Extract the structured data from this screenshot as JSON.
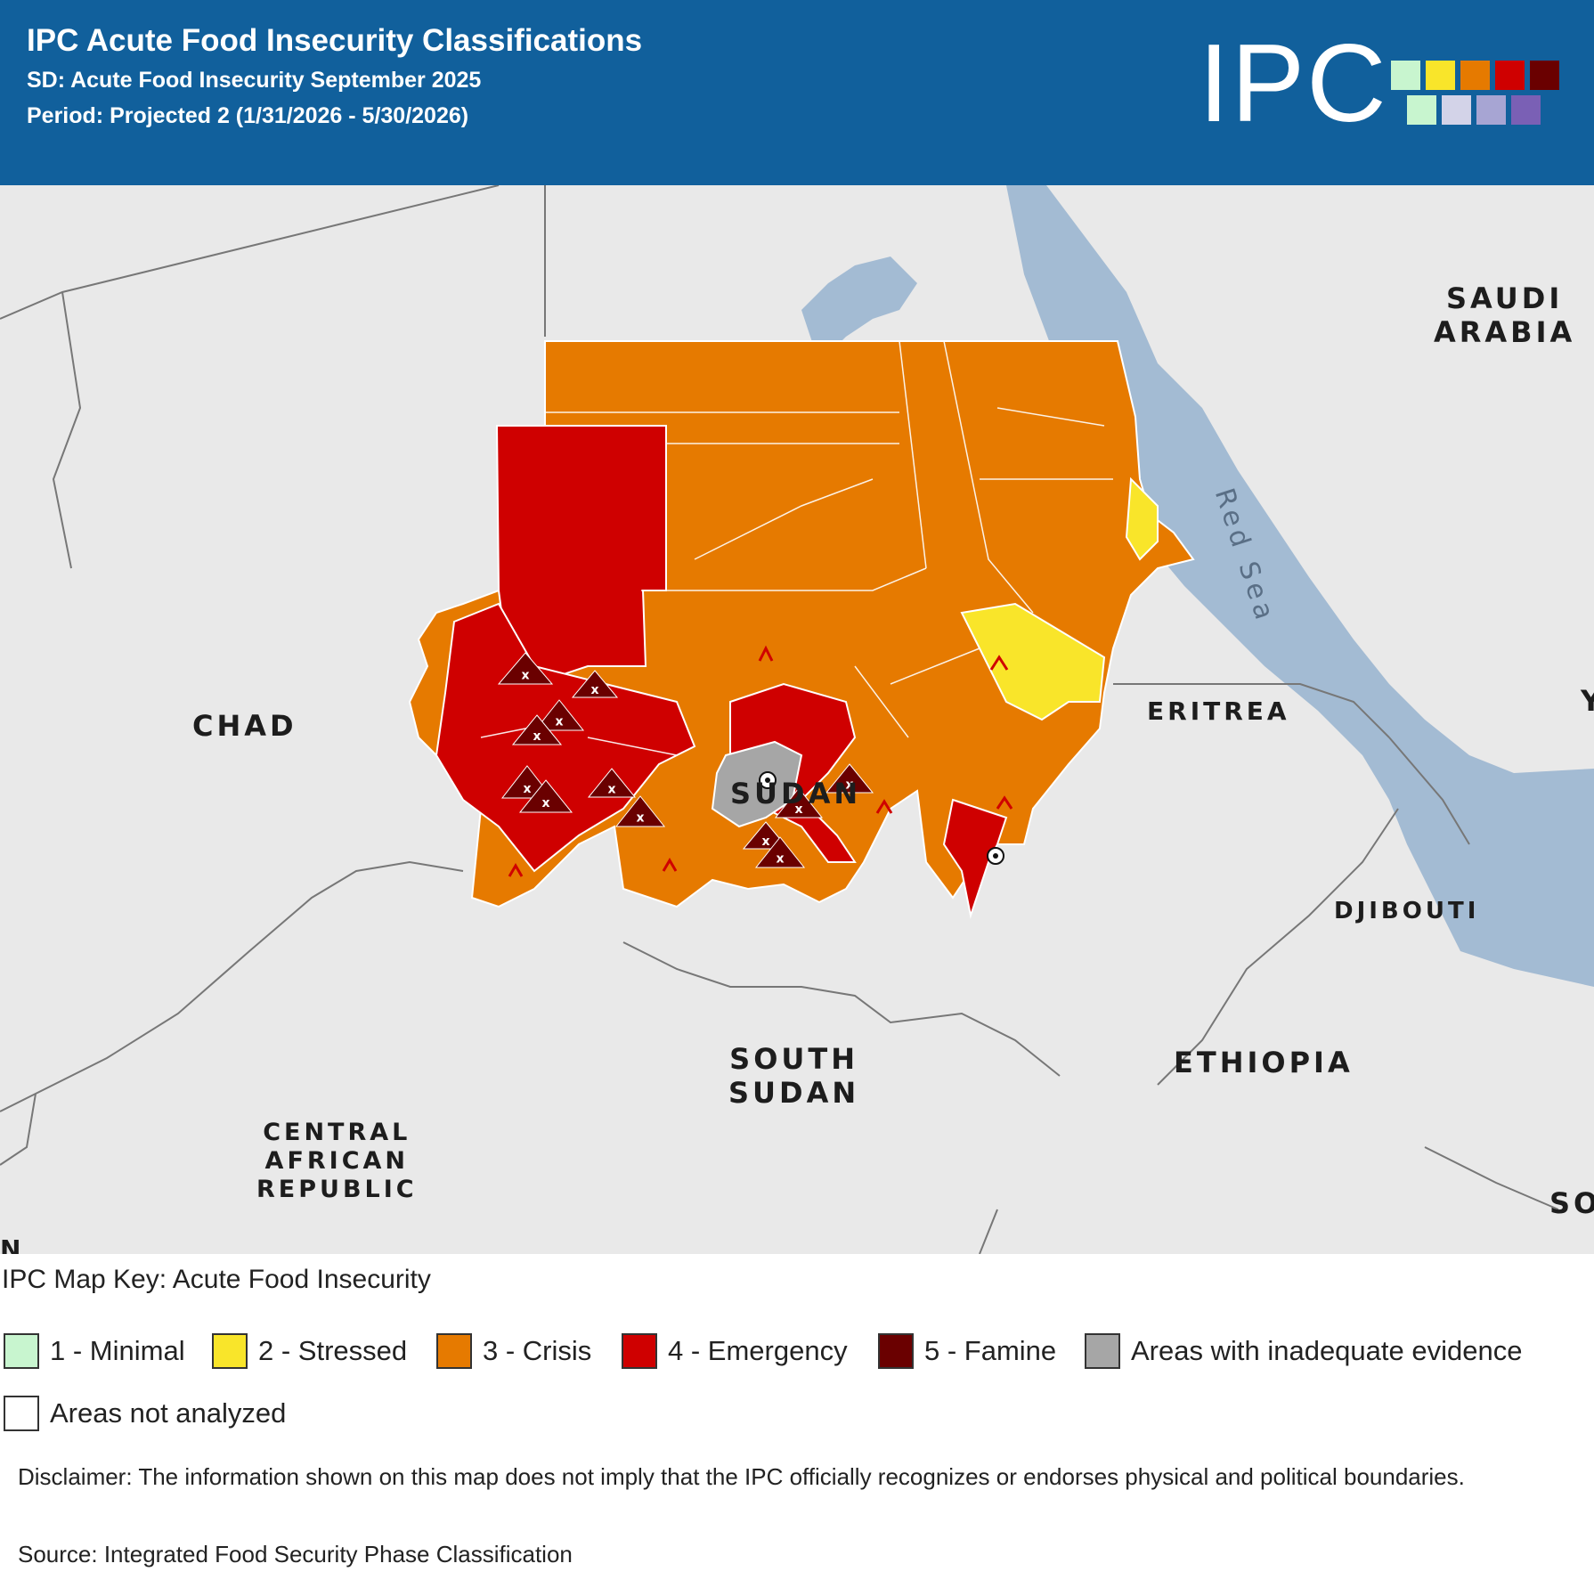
{
  "header": {
    "title": "IPC Acute Food Insecurity Classifications",
    "subtitle": "SD: Acute Food Insecurity September 2025",
    "period": "Period: Projected 2 (1/31/2026 - 5/30/2026)",
    "logo_text": "IPC",
    "logo_colors_top": [
      "#c8f5cf",
      "#f9e52a",
      "#e67a00",
      "#cf0000",
      "#6a0000"
    ],
    "logo_colors_bottom": [
      "#c8f5cf",
      "#d3d3e8",
      "#a7a5d3",
      "#7a60b5"
    ]
  },
  "map": {
    "labels": {
      "chad": "CHAD",
      "sudan": "SUDAN",
      "south_sudan": "SOUTH\nSUDAN",
      "car": "CENTRAL\nAFRICAN\nREPUBLIC",
      "saudi": "SAUDI\nARABIA",
      "eritrea": "ERITREA",
      "djibouti": "DJIBOUTI",
      "ethiopia": "ETHIOPIA",
      "somalia_partial": "SO",
      "yemen_partial": "Y",
      "edge_partial": "N",
      "red_sea": "Red Sea"
    },
    "colors": {
      "land": "#e9e9e9",
      "water": "#a3bbd3",
      "phase2": "#f9e52a",
      "phase3": "#e67a00",
      "phase4": "#cf0000",
      "phase5": "#6a0000",
      "inadequate": "#a6a6a6"
    }
  },
  "legend": {
    "title": "IPC Map Key: Acute Food Insecurity",
    "items": [
      {
        "label": "1 - Minimal",
        "color": "#c8f5cf"
      },
      {
        "label": "2 - Stressed",
        "color": "#f9e52a"
      },
      {
        "label": "3 - Crisis",
        "color": "#e67a00"
      },
      {
        "label": "4 - Emergency",
        "color": "#cf0000"
      },
      {
        "label": "5 - Famine",
        "color": "#6a0000"
      },
      {
        "label": "Areas with inadequate evidence",
        "color": "#a6a6a6"
      },
      {
        "label": "Areas not analyzed",
        "color": "#ffffff"
      }
    ]
  },
  "disclaimer": "Disclaimer: The information shown on this map does not imply that the IPC officially recognizes or endorses physical and political boundaries.",
  "source": "Source: Integrated Food Security Phase Classification"
}
